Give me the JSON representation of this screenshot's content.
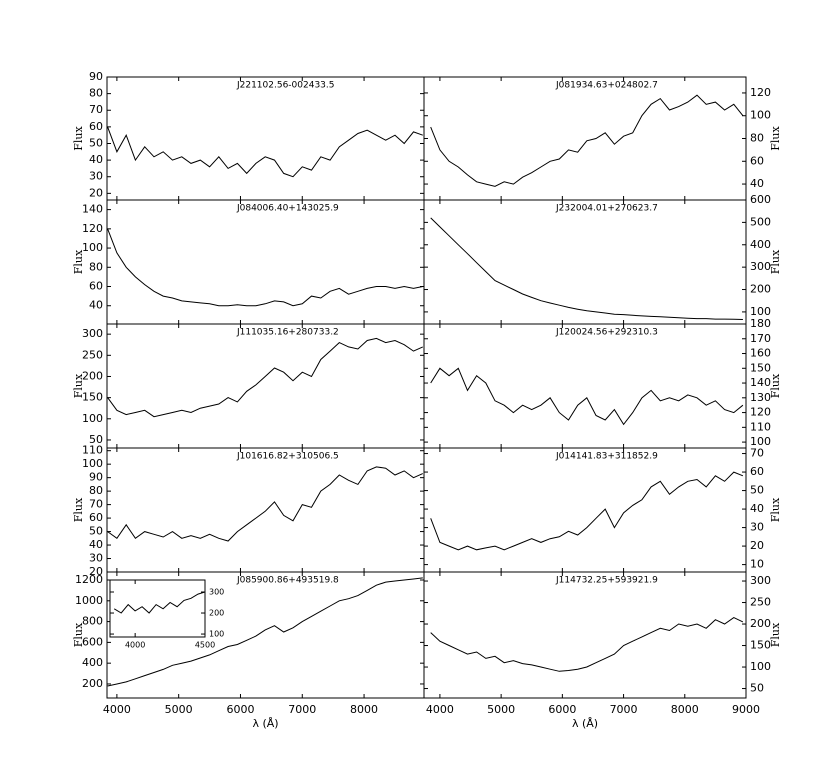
{
  "chart_data": [
    {
      "type": "line",
      "title": "J221102.56-002433.5",
      "ylabel": "Flux",
      "yaxis_side": "left",
      "xtick_labels": false,
      "color": "#000000",
      "xlim": [
        3840,
        8970
      ],
      "xticks": [
        4000,
        5000,
        6000,
        7000,
        8000
      ],
      "ylim": [
        16,
        90
      ],
      "yticks": [
        20,
        30,
        40,
        50,
        60,
        70,
        80,
        90
      ],
      "x": [
        3850,
        4000,
        4150,
        4300,
        4450,
        4600,
        4750,
        4900,
        5050,
        5200,
        5350,
        5500,
        5650,
        5800,
        5950,
        6100,
        6250,
        6400,
        6550,
        6700,
        6850,
        7000,
        7150,
        7300,
        7450,
        7600,
        7750,
        7900,
        8050,
        8200,
        8350,
        8500,
        8650,
        8800,
        8950
      ],
      "values": [
        60,
        45,
        55,
        40,
        48,
        42,
        45,
        40,
        42,
        38,
        40,
        36,
        42,
        35,
        38,
        32,
        38,
        42,
        40,
        32,
        30,
        36,
        34,
        42,
        40,
        48,
        52,
        56,
        58,
        55,
        52,
        55,
        50,
        57,
        55
      ]
    },
    {
      "type": "line",
      "title": "J081934.63+024802.7",
      "ylabel": "Flux",
      "yaxis_side": "right",
      "xtick_labels": false,
      "color": "#000000",
      "xlim": [
        3740,
        9000
      ],
      "xticks": [
        4000,
        5000,
        6000,
        7000,
        8000,
        9000
      ],
      "ylim": [
        26,
        134
      ],
      "yticks": [
        40,
        60,
        80,
        100,
        120
      ],
      "x": [
        3850,
        4000,
        4150,
        4300,
        4450,
        4600,
        4750,
        4900,
        5050,
        5200,
        5350,
        5500,
        5650,
        5800,
        5950,
        6100,
        6250,
        6400,
        6550,
        6700,
        6850,
        7000,
        7150,
        7300,
        7450,
        7600,
        7750,
        7900,
        8050,
        8200,
        8350,
        8500,
        8650,
        8800,
        8950
      ],
      "values": [
        90,
        70,
        60,
        55,
        48,
        42,
        40,
        38,
        42,
        40,
        46,
        50,
        55,
        60,
        62,
        70,
        68,
        78,
        80,
        85,
        75,
        82,
        85,
        100,
        110,
        115,
        105,
        108,
        112,
        118,
        110,
        112,
        105,
        110,
        100
      ]
    },
    {
      "type": "line",
      "title": "J084006.40+143025.9",
      "ylabel": "Flux",
      "yaxis_side": "left",
      "xtick_labels": false,
      "color": "#000000",
      "xlim": [
        3840,
        8970
      ],
      "xticks": [
        4000,
        5000,
        6000,
        7000,
        8000
      ],
      "ylim": [
        21,
        150
      ],
      "yticks": [
        40,
        60,
        80,
        100,
        120,
        140
      ],
      "x": [
        3850,
        4000,
        4150,
        4300,
        4450,
        4600,
        4750,
        4900,
        5050,
        5200,
        5350,
        5500,
        5650,
        5800,
        5950,
        6100,
        6250,
        6400,
        6550,
        6700,
        6850,
        7000,
        7150,
        7300,
        7450,
        7600,
        7750,
        7900,
        8050,
        8200,
        8350,
        8500,
        8650,
        8800,
        8950
      ],
      "values": [
        120,
        95,
        80,
        70,
        62,
        55,
        50,
        48,
        45,
        44,
        43,
        42,
        40,
        40,
        41,
        40,
        40,
        42,
        45,
        44,
        40,
        42,
        50,
        48,
        55,
        58,
        52,
        55,
        58,
        60,
        60,
        58,
        60,
        58,
        60
      ]
    },
    {
      "type": "line",
      "title": "J232004.01+270623.7",
      "ylabel": "Flux",
      "yaxis_side": "right",
      "xtick_labels": false,
      "color": "#000000",
      "xlim": [
        3740,
        9000
      ],
      "xticks": [
        4000,
        5000,
        6000,
        7000,
        8000,
        9000
      ],
      "ylim": [
        46,
        600
      ],
      "yticks": [
        100,
        200,
        300,
        400,
        500,
        600
      ],
      "x": [
        3850,
        4000,
        4150,
        4300,
        4450,
        4600,
        4750,
        4900,
        5050,
        5200,
        5350,
        5500,
        5650,
        5800,
        5950,
        6100,
        6250,
        6400,
        6550,
        6700,
        6850,
        7000,
        7150,
        7300,
        7450,
        7600,
        7750,
        7900,
        8050,
        8200,
        8350,
        8500,
        8650,
        8800,
        8950
      ],
      "values": [
        520,
        480,
        440,
        400,
        360,
        320,
        280,
        240,
        220,
        200,
        180,
        165,
        150,
        140,
        130,
        120,
        112,
        105,
        100,
        95,
        90,
        88,
        85,
        82,
        80,
        78,
        76,
        74,
        72,
        70,
        70,
        68,
        68,
        67,
        66
      ]
    },
    {
      "type": "line",
      "title": "J111035.16+280733.2",
      "ylabel": "Flux",
      "yaxis_side": "left",
      "xtick_labels": false,
      "color": "#000000",
      "xlim": [
        3840,
        8970
      ],
      "xticks": [
        4000,
        5000,
        6000,
        7000,
        8000
      ],
      "ylim": [
        31,
        324
      ],
      "yticks": [
        50,
        100,
        150,
        200,
        250,
        300
      ],
      "x": [
        3850,
        4000,
        4150,
        4300,
        4450,
        4600,
        4750,
        4900,
        5050,
        5200,
        5350,
        5500,
        5650,
        5800,
        5950,
        6100,
        6250,
        6400,
        6550,
        6700,
        6850,
        7000,
        7150,
        7300,
        7450,
        7600,
        7750,
        7900,
        8050,
        8200,
        8350,
        8500,
        8650,
        8800,
        8950
      ],
      "values": [
        150,
        120,
        110,
        115,
        120,
        105,
        110,
        115,
        120,
        115,
        125,
        130,
        135,
        150,
        140,
        165,
        180,
        200,
        220,
        210,
        190,
        210,
        200,
        240,
        260,
        280,
        270,
        265,
        285,
        290,
        280,
        285,
        275,
        260,
        270
      ]
    },
    {
      "type": "line",
      "title": "J120024.56+292310.3",
      "ylabel": "Flux",
      "yaxis_side": "right",
      "xtick_labels": false,
      "color": "#000000",
      "xlim": [
        3740,
        9000
      ],
      "xticks": [
        4000,
        5000,
        6000,
        7000,
        8000,
        9000
      ],
      "ylim": [
        96,
        180
      ],
      "yticks": [
        100,
        110,
        120,
        130,
        140,
        150,
        160,
        170,
        180
      ],
      "x": [
        3850,
        4000,
        4150,
        4300,
        4450,
        4600,
        4750,
        4900,
        5050,
        5200,
        5350,
        5500,
        5650,
        5800,
        5950,
        6100,
        6250,
        6400,
        6550,
        6700,
        6850,
        7000,
        7150,
        7300,
        7450,
        7600,
        7750,
        7900,
        8050,
        8200,
        8350,
        8500,
        8650,
        8800,
        8950
      ],
      "values": [
        140,
        150,
        145,
        150,
        135,
        145,
        140,
        128,
        125,
        120,
        125,
        122,
        125,
        130,
        120,
        115,
        125,
        130,
        118,
        115,
        122,
        112,
        120,
        130,
        135,
        128,
        130,
        128,
        132,
        130,
        125,
        128,
        122,
        120,
        125
      ]
    },
    {
      "type": "line",
      "title": "J101616.82+310506.5",
      "ylabel": "Flux",
      "yaxis_side": "left",
      "xtick_labels": false,
      "color": "#000000",
      "xlim": [
        3840,
        8970
      ],
      "xticks": [
        4000,
        5000,
        6000,
        7000,
        8000
      ],
      "ylim": [
        20,
        112
      ],
      "yticks": [
        20,
        30,
        40,
        50,
        60,
        70,
        80,
        90,
        100,
        110
      ],
      "x": [
        3850,
        4000,
        4150,
        4300,
        4450,
        4600,
        4750,
        4900,
        5050,
        5200,
        5350,
        5500,
        5650,
        5800,
        5950,
        6100,
        6250,
        6400,
        6550,
        6700,
        6850,
        7000,
        7150,
        7300,
        7450,
        7600,
        7750,
        7900,
        8050,
        8200,
        8350,
        8500,
        8650,
        8800,
        8950
      ],
      "values": [
        50,
        45,
        55,
        45,
        50,
        48,
        46,
        50,
        45,
        47,
        45,
        48,
        45,
        43,
        50,
        55,
        60,
        65,
        72,
        62,
        58,
        70,
        68,
        80,
        85,
        92,
        88,
        85,
        95,
        98,
        97,
        92,
        95,
        90,
        93
      ]
    },
    {
      "type": "line",
      "title": "J014141.83+311852.9",
      "ylabel": "Flux",
      "yaxis_side": "right",
      "xtick_labels": false,
      "color": "#000000",
      "xlim": [
        3740,
        9000
      ],
      "xticks": [
        4000,
        5000,
        6000,
        7000,
        8000,
        9000
      ],
      "ylim": [
        6,
        73
      ],
      "yticks": [
        10,
        20,
        30,
        40,
        50,
        60,
        70
      ],
      "x": [
        3850,
        4000,
        4150,
        4300,
        4450,
        4600,
        4750,
        4900,
        5050,
        5200,
        5350,
        5500,
        5650,
        5800,
        5950,
        6100,
        6250,
        6400,
        6550,
        6700,
        6850,
        7000,
        7150,
        7300,
        7450,
        7600,
        7750,
        7900,
        8050,
        8200,
        8350,
        8500,
        8650,
        8800,
        8950
      ],
      "values": [
        35,
        22,
        20,
        18,
        20,
        18,
        19,
        20,
        18,
        20,
        22,
        24,
        22,
        24,
        25,
        28,
        26,
        30,
        35,
        40,
        30,
        38,
        42,
        45,
        52,
        55,
        48,
        52,
        55,
        56,
        52,
        58,
        55,
        60,
        58
      ]
    },
    {
      "type": "line",
      "title": "J085900.86+493519.8",
      "ylabel": "Flux",
      "xlabel": "λ (Å)",
      "yaxis_side": "left",
      "xtick_labels": true,
      "color": "#000000",
      "xlim": [
        3840,
        8970
      ],
      "xticks": [
        4000,
        5000,
        6000,
        7000,
        8000
      ],
      "ylim": [
        65,
        1277
      ],
      "yticks": [
        200,
        400,
        600,
        800,
        1000,
        1200
      ],
      "x": [
        3850,
        4000,
        4150,
        4300,
        4450,
        4600,
        4750,
        4900,
        5050,
        5200,
        5350,
        5500,
        5650,
        5800,
        5950,
        6100,
        6250,
        6400,
        6550,
        6700,
        6850,
        7000,
        7150,
        7300,
        7450,
        7600,
        7750,
        7900,
        8050,
        8200,
        8350,
        8500,
        8650,
        8800,
        8950
      ],
      "values": [
        180,
        200,
        220,
        250,
        280,
        310,
        340,
        380,
        400,
        420,
        450,
        480,
        520,
        560,
        580,
        620,
        660,
        720,
        760,
        700,
        740,
        800,
        850,
        900,
        950,
        1000,
        1020,
        1050,
        1100,
        1150,
        1180,
        1190,
        1200,
        1210,
        1220
      ]
    },
    {
      "type": "line",
      "title": "J114732.25+593921.9",
      "ylabel": "Flux",
      "xlabel": "λ (Å)",
      "yaxis_side": "right",
      "xtick_labels": true,
      "color": "#000000",
      "xlim": [
        3740,
        9000
      ],
      "xticks": [
        4000,
        5000,
        6000,
        7000,
        8000,
        9000
      ],
      "ylim": [
        28,
        321
      ],
      "yticks": [
        50,
        100,
        150,
        200,
        250,
        300
      ],
      "x": [
        3850,
        4000,
        4150,
        4300,
        4450,
        4600,
        4750,
        4900,
        5050,
        5200,
        5350,
        5500,
        5650,
        5800,
        5950,
        6100,
        6250,
        6400,
        6550,
        6700,
        6850,
        7000,
        7150,
        7300,
        7450,
        7600,
        7750,
        7900,
        8050,
        8200,
        8350,
        8500,
        8650,
        8800,
        8950
      ],
      "values": [
        180,
        160,
        150,
        140,
        130,
        135,
        120,
        125,
        110,
        115,
        108,
        105,
        100,
        95,
        90,
        92,
        95,
        100,
        110,
        120,
        130,
        150,
        160,
        170,
        180,
        190,
        185,
        200,
        195,
        200,
        190,
        210,
        200,
        215,
        205
      ]
    },
    {
      "type": "line",
      "yaxis_side": "right",
      "xtick_labels": true,
      "color": "#000000",
      "xlim": [
        3820,
        4500
      ],
      "xticks": [
        4000,
        4500
      ],
      "ylim": [
        86,
        357
      ],
      "yticks": [
        100,
        200,
        300
      ],
      "x": [
        3850,
        3900,
        3950,
        4000,
        4050,
        4100,
        4150,
        4200,
        4250,
        4300,
        4350,
        4400,
        4450,
        4500
      ],
      "values": [
        220,
        200,
        240,
        210,
        230,
        200,
        240,
        220,
        250,
        230,
        260,
        270,
        290,
        300
      ]
    }
  ]
}
